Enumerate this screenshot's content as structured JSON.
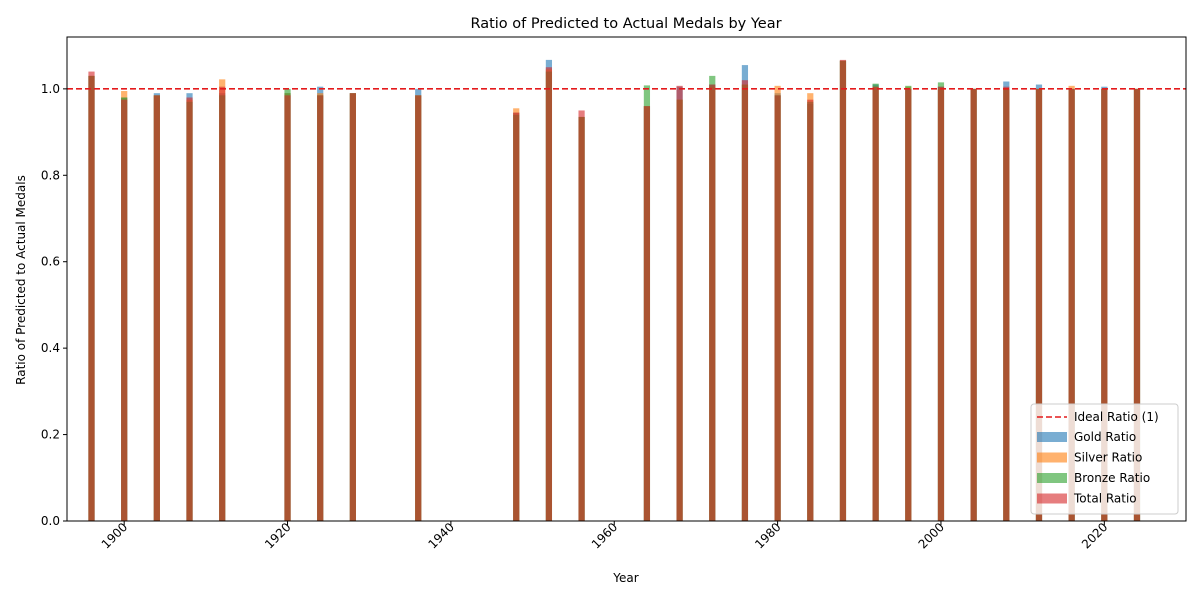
{
  "chart_data": {
    "type": "bar",
    "title": "Ratio of Predicted to Actual Medals by Year",
    "xlabel": "Year",
    "ylabel": "Ratio of Predicted to Actual Medals",
    "xlim": [
      1893,
      2030
    ],
    "ylim": [
      0,
      1.12
    ],
    "x_ticks": [
      1900,
      1920,
      1940,
      1960,
      1980,
      2000,
      2020
    ],
    "y_ticks": [
      0.0,
      0.2,
      0.4,
      0.6,
      0.8,
      1.0
    ],
    "x_tick_labels": [
      "1900",
      "1920",
      "1940",
      "1960",
      "1980",
      "2000",
      "2020"
    ],
    "y_tick_labels": [
      "0.0",
      "0.2",
      "0.4",
      "0.6",
      "0.8",
      "1.0"
    ],
    "grid": false,
    "legend_position": "lower right",
    "reference_line": {
      "name": "Ideal Ratio (1)",
      "value": 1.0,
      "color": "#e41a1c",
      "style": "dashed"
    },
    "years": [
      1896,
      1900,
      1904,
      1908,
      1912,
      1920,
      1924,
      1928,
      1936,
      1948,
      1952,
      1956,
      1964,
      1968,
      1972,
      1976,
      1980,
      1984,
      1988,
      1992,
      1996,
      2000,
      2004,
      2008,
      2012,
      2016,
      2020,
      2024
    ],
    "series": [
      {
        "name": "Gold Ratio",
        "color": "#1f77b4",
        "values": [
          1.03,
          0.98,
          0.99,
          0.99,
          0.99,
          0.99,
          1.005,
          0.99,
          1.0,
          0.945,
          1.067,
          0.935,
          0.96,
          1.005,
          1.01,
          1.055,
          0.99,
          0.965,
          1.065,
          1.01,
          1.0,
          1.005,
          1.0,
          1.017,
          1.01,
          1.0,
          1.005,
          1.0
        ]
      },
      {
        "name": "Silver Ratio",
        "color": "#ff7f0e",
        "values": [
          1.03,
          0.995,
          0.985,
          0.975,
          1.022,
          0.99,
          0.99,
          0.99,
          0.985,
          0.955,
          1.045,
          0.935,
          0.96,
          0.975,
          1.005,
          1.01,
          1.007,
          0.99,
          1.065,
          1.005,
          1.005,
          1.0,
          1.0,
          1.0,
          1.0,
          1.007,
          1.0,
          1.0
        ]
      },
      {
        "name": "Bronze Ratio",
        "color": "#2ca02c",
        "values": [
          1.03,
          0.98,
          0.985,
          0.97,
          0.985,
          1.0,
          0.985,
          0.99,
          0.985,
          0.94,
          1.04,
          0.935,
          1.008,
          0.975,
          1.03,
          1.01,
          0.985,
          0.97,
          1.065,
          1.012,
          1.007,
          1.015,
          1.0,
          1.0,
          1.0,
          1.0,
          1.0,
          1.0
        ]
      },
      {
        "name": "Total Ratio",
        "color": "#d62728",
        "values": [
          1.04,
          0.975,
          0.985,
          0.98,
          1.005,
          0.985,
          0.985,
          0.99,
          0.985,
          0.945,
          1.05,
          0.95,
          0.96,
          1.007,
          1.01,
          1.02,
          0.985,
          0.975,
          1.067,
          1.005,
          1.0,
          1.005,
          1.0,
          1.005,
          1.0,
          1.0,
          1.0,
          1.0
        ]
      }
    ]
  }
}
